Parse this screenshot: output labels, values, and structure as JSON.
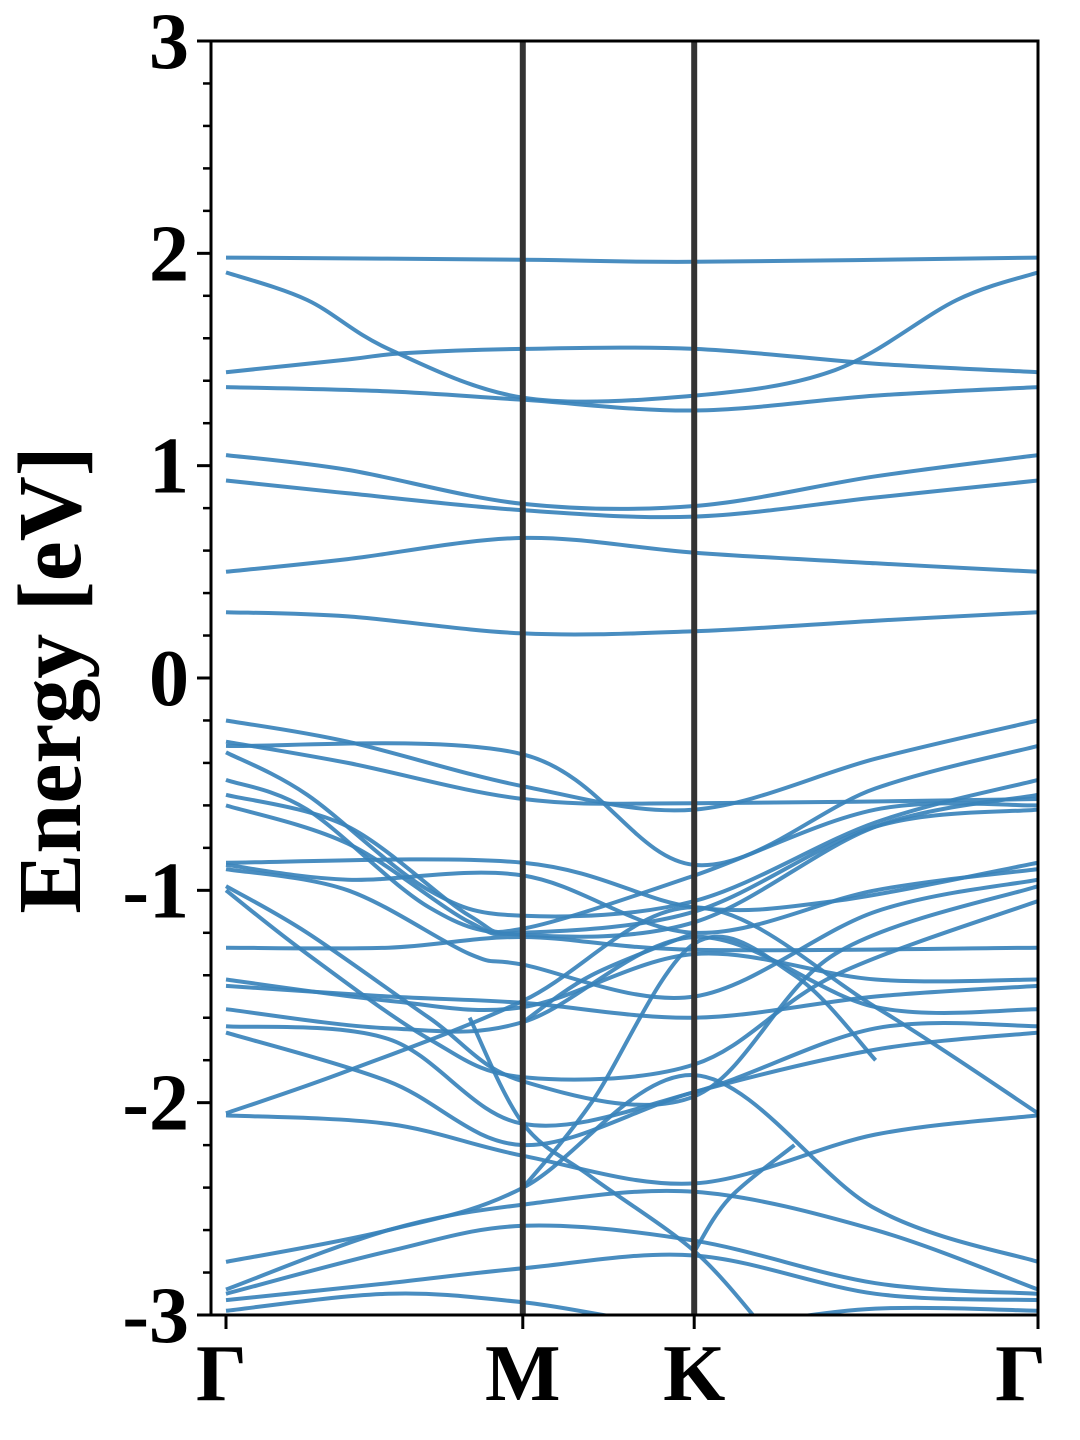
{
  "chart_data": {
    "type": "line",
    "title": "",
    "xlabel": "",
    "ylabel": "Energy [eV]",
    "ylim": [
      -3,
      3
    ],
    "yticks": [
      "3",
      "2",
      "1",
      "0",
      "-1",
      "-2",
      "-3"
    ],
    "kpoints": [
      {
        "label": "Γ",
        "x": 0.0
      },
      {
        "label": "M",
        "x": 0.3655
      },
      {
        "label": "K",
        "x": 0.5766
      },
      {
        "label": "Γ",
        "x": 1.0
      }
    ],
    "grid": false,
    "legend": "none",
    "colors": {
      "bands": "#3a83bb",
      "kpoint_lines": "#333333"
    },
    "bands": [
      {
        "x": [
          0,
          0.366,
          0.577,
          1
        ],
        "y": [
          1.98,
          1.97,
          1.96,
          1.98
        ]
      },
      {
        "x": [
          0,
          0.1,
          0.2,
          0.366,
          0.577,
          0.75,
          0.9,
          1
        ],
        "y": [
          1.91,
          1.78,
          1.55,
          1.32,
          1.33,
          1.45,
          1.78,
          1.91
        ]
      },
      {
        "x": [
          0,
          0.15,
          0.22,
          0.366,
          0.577,
          0.8,
          1
        ],
        "y": [
          1.44,
          1.5,
          1.53,
          1.55,
          1.55,
          1.48,
          1.44
        ]
      },
      {
        "x": [
          0,
          0.2,
          0.366,
          0.577,
          0.8,
          1
        ],
        "y": [
          1.37,
          1.35,
          1.31,
          1.26,
          1.33,
          1.37
        ]
      },
      {
        "x": [
          0,
          0.15,
          0.366,
          0.577,
          0.8,
          1
        ],
        "y": [
          1.05,
          0.98,
          0.82,
          0.81,
          0.95,
          1.05
        ]
      },
      {
        "x": [
          0,
          0.15,
          0.366,
          0.577,
          0.8,
          1
        ],
        "y": [
          0.93,
          0.87,
          0.79,
          0.76,
          0.85,
          0.93
        ]
      },
      {
        "x": [
          0,
          0.15,
          0.366,
          0.577,
          0.8,
          1
        ],
        "y": [
          0.5,
          0.56,
          0.66,
          0.59,
          0.54,
          0.5
        ]
      },
      {
        "x": [
          0,
          0.15,
          0.366,
          0.577,
          0.8,
          1
        ],
        "y": [
          0.31,
          0.29,
          0.21,
          0.22,
          0.27,
          0.31
        ]
      },
      {
        "x": [
          0,
          0.15,
          0.366,
          0.577,
          0.8,
          1
        ],
        "y": [
          -0.2,
          -0.3,
          -0.51,
          -0.62,
          -0.38,
          -0.2
        ]
      },
      {
        "x": [
          0,
          0.366,
          0.577,
          0.8,
          1
        ],
        "y": [
          -0.32,
          -0.36,
          -0.88,
          -0.52,
          -0.32
        ]
      },
      {
        "x": [
          0,
          0.15,
          0.366,
          0.577,
          1
        ],
        "y": [
          -0.3,
          -0.4,
          -0.57,
          -0.59,
          -0.57
        ]
      },
      {
        "x": [
          0,
          0.1,
          0.25,
          0.366,
          0.577,
          0.8,
          1
        ],
        "y": [
          -0.35,
          -0.55,
          -1.0,
          -1.12,
          -1.05,
          -0.68,
          -0.48
        ]
      },
      {
        "x": [
          0,
          0.1,
          0.25,
          0.366,
          0.577,
          0.8,
          1
        ],
        "y": [
          -0.48,
          -0.62,
          -1.08,
          -1.21,
          -1.15,
          -0.7,
          -0.55
        ]
      },
      {
        "x": [
          0,
          0.15,
          0.3,
          0.366,
          0.577,
          0.8,
          1
        ],
        "y": [
          -0.55,
          -0.7,
          -1.12,
          -1.18,
          -0.93,
          -0.62,
          -0.6
        ]
      },
      {
        "x": [
          0,
          0.15,
          0.3,
          0.366,
          0.577,
          0.8,
          1
        ],
        "y": [
          -0.6,
          -0.78,
          -1.15,
          -1.2,
          -1.1,
          -0.7,
          -0.62
        ]
      },
      {
        "x": [
          0,
          0.366,
          0.577,
          0.75,
          1
        ],
        "y": [
          -0.87,
          -0.87,
          -1.08,
          -1.05,
          -0.87
        ]
      },
      {
        "x": [
          0,
          0.15,
          0.366,
          0.577,
          0.8,
          1
        ],
        "y": [
          -0.88,
          -0.95,
          -0.93,
          -1.2,
          -1.0,
          -0.9
        ]
      },
      {
        "x": [
          0,
          0.15,
          0.3,
          0.366,
          0.577,
          0.8,
          1
        ],
        "y": [
          -0.9,
          -1.0,
          -1.3,
          -1.35,
          -1.5,
          -1.1,
          -0.95
        ]
      },
      {
        "x": [
          0,
          0.1,
          0.25,
          0.366,
          0.577,
          0.75,
          1
        ],
        "y": [
          -0.98,
          -1.2,
          -1.6,
          -1.9,
          -1.97,
          -1.3,
          -0.98
        ]
      },
      {
        "x": [
          0,
          0.1,
          0.25,
          0.366,
          0.577,
          0.75,
          1
        ],
        "y": [
          -1.0,
          -1.3,
          -1.7,
          -1.88,
          -1.82,
          -1.4,
          -1.05
        ]
      },
      {
        "x": [
          0,
          0.2,
          0.366,
          0.577,
          1
        ],
        "y": [
          -1.27,
          -1.27,
          -1.22,
          -1.28,
          -1.27
        ]
      },
      {
        "x": [
          0,
          0.2,
          0.366,
          0.577,
          0.8,
          1
        ],
        "y": [
          -1.42,
          -1.52,
          -1.55,
          -1.3,
          -1.42,
          -1.42
        ]
      },
      {
        "x": [
          0,
          0.2,
          0.366,
          0.577,
          0.8,
          1
        ],
        "y": [
          -1.45,
          -1.5,
          -1.53,
          -1.6,
          -1.5,
          -1.45
        ]
      },
      {
        "x": [
          0,
          0.2,
          0.366,
          0.577,
          0.8,
          1
        ],
        "y": [
          -1.56,
          -1.65,
          -1.62,
          -1.22,
          -1.55,
          -1.56
        ]
      },
      {
        "x": [
          0,
          0.2,
          0.366,
          0.577,
          0.8,
          1
        ],
        "y": [
          -1.64,
          -1.7,
          -2.1,
          -1.95,
          -1.65,
          -1.64
        ]
      },
      {
        "x": [
          0,
          0.2,
          0.366,
          0.577,
          0.8,
          1
        ],
        "y": [
          -1.67,
          -1.9,
          -2.2,
          -1.95,
          -1.75,
          -1.67
        ]
      },
      {
        "x": [
          0,
          0.15,
          0.366,
          0.577,
          0.8,
          1
        ],
        "y": [
          -2.05,
          -1.85,
          -1.52,
          -1.08,
          -1.55,
          -2.05
        ]
      },
      {
        "x": [
          0,
          0.2,
          0.366,
          0.577,
          0.8,
          1
        ],
        "y": [
          -2.06,
          -2.1,
          -2.25,
          -2.38,
          -2.15,
          -2.06
        ]
      },
      {
        "x": [
          0,
          0.2,
          0.366,
          0.577,
          0.8,
          1
        ],
        "y": [
          -2.75,
          -2.6,
          -2.4,
          -1.87,
          -2.5,
          -2.75
        ]
      },
      {
        "x": [
          0,
          0.2,
          0.366,
          0.577,
          0.8,
          1
        ],
        "y": [
          -2.88,
          -2.6,
          -2.48,
          -2.42,
          -2.6,
          -2.88
        ]
      },
      {
        "x": [
          0,
          0.2,
          0.366,
          0.577,
          0.8,
          1
        ],
        "y": [
          -2.9,
          -2.7,
          -2.58,
          -2.65,
          -2.85,
          -2.9
        ]
      },
      {
        "x": [
          0,
          0.2,
          0.366,
          0.577,
          0.8,
          1
        ],
        "y": [
          -2.93,
          -2.85,
          -2.78,
          -2.72,
          -2.9,
          -2.93
        ]
      },
      {
        "x": [
          0,
          0.2,
          0.366,
          0.577,
          0.8,
          1
        ],
        "y": [
          -2.98,
          -2.9,
          -2.94,
          -3.05,
          -2.97,
          -2.98
        ]
      },
      {
        "x": [
          0.3,
          0.366,
          0.45,
          0.577,
          0.66
        ],
        "y": [
          -1.6,
          -2.1,
          -2.35,
          -2.7,
          -3.05
        ]
      },
      {
        "x": [
          0.366,
          0.45,
          0.577,
          0.7,
          0.8
        ],
        "y": [
          -2.4,
          -2.0,
          -1.25,
          -1.4,
          -1.8
        ]
      },
      {
        "x": [
          0.366,
          0.45,
          0.577
        ],
        "y": [
          -1.62,
          -1.4,
          -1.2
        ]
      },
      {
        "x": [
          0.577,
          0.62,
          0.7
        ],
        "y": [
          -2.7,
          -2.45,
          -2.2
        ]
      }
    ]
  }
}
